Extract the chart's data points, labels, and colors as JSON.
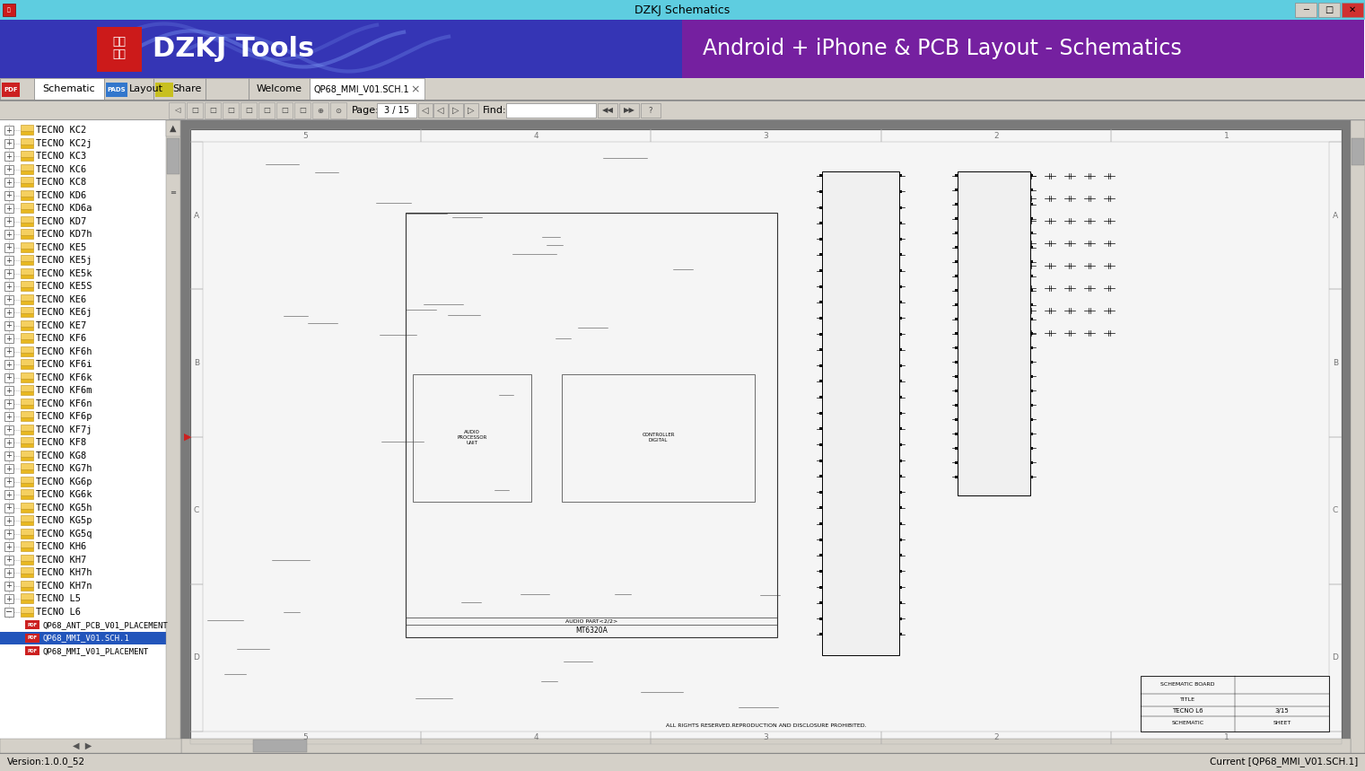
{
  "title_bar_text": "DZKJ Schematics",
  "title_bar_bg": "#5ecde0",
  "title_bar_text_color": "#000000",
  "header_bg_left": "#3a3ab8",
  "header_bg_right": "#7a1fa0",
  "header_title": "Android + iPhone & PCB Layout - Schematics",
  "header_title_color": "#ffffff",
  "dzkj_text": "DZKJ Tools",
  "dzkj_text_color": "#ffffff",
  "logo_bg": "#cc1a1a",
  "logo_line1": "东震",
  "logo_line2": "科技",
  "logo_text_color": "#ffffff",
  "toolbar_bg": "#d4d0c8",
  "tab_names": [
    "PDF",
    "Schematic",
    "PADS",
    "Layout",
    "Share",
    "Welcome",
    "QP68_MMI_V01.SCH.1"
  ],
  "page_tab": "QP68_MMI_V01.SCH.1",
  "nav_bar_bg": "#d4d0c8",
  "page_num": "3 / 15",
  "find_text": "Find:",
  "tree_bg": "#ffffff",
  "tree_items": [
    "TECNO KC2",
    "TECNO KC2j",
    "TECNO KC3",
    "TECNO KC6",
    "TECNO KC8",
    "TECNO KD6",
    "TECNO KD6a",
    "TECNO KD7",
    "TECNO KD7h",
    "TECNO KE5",
    "TECNO KE5j",
    "TECNO KE5k",
    "TECNO KE5S",
    "TECNO KE6",
    "TECNO KE6j",
    "TECNO KE7",
    "TECNO KF6",
    "TECNO KF6h",
    "TECNO KF6i",
    "TECNO KF6k",
    "TECNO KF6m",
    "TECNO KF6n",
    "TECNO KF6p",
    "TECNO KF7j",
    "TECNO KF8",
    "TECNO KG8",
    "TECNO KG7h",
    "TECNO KG6p",
    "TECNO KG6k",
    "TECNO KG5h",
    "TECNO KG5p",
    "TECNO KG5q",
    "TECNO KH6",
    "TECNO KH7",
    "TECNO KH7h",
    "TECNO KH7n",
    "TECNO L5",
    "TECNO L6"
  ],
  "tree_subitems": [
    "QP68_ANT_PCB_V01_PLACEMENT",
    "QP68_MMI_V01.SCH.1",
    "QP68_MMI_V01_PLACEMENT"
  ],
  "tree_selected": "QP68_MMI_V01.SCH.1",
  "schematic_bg": "#7a7a7a",
  "status_bar_text": "Current [QP68_MMI_V01.SCH.1]",
  "version_text": "Version:1.0.0_52",
  "fig_width": 15.21,
  "fig_height": 8.59,
  "dpi": 100
}
